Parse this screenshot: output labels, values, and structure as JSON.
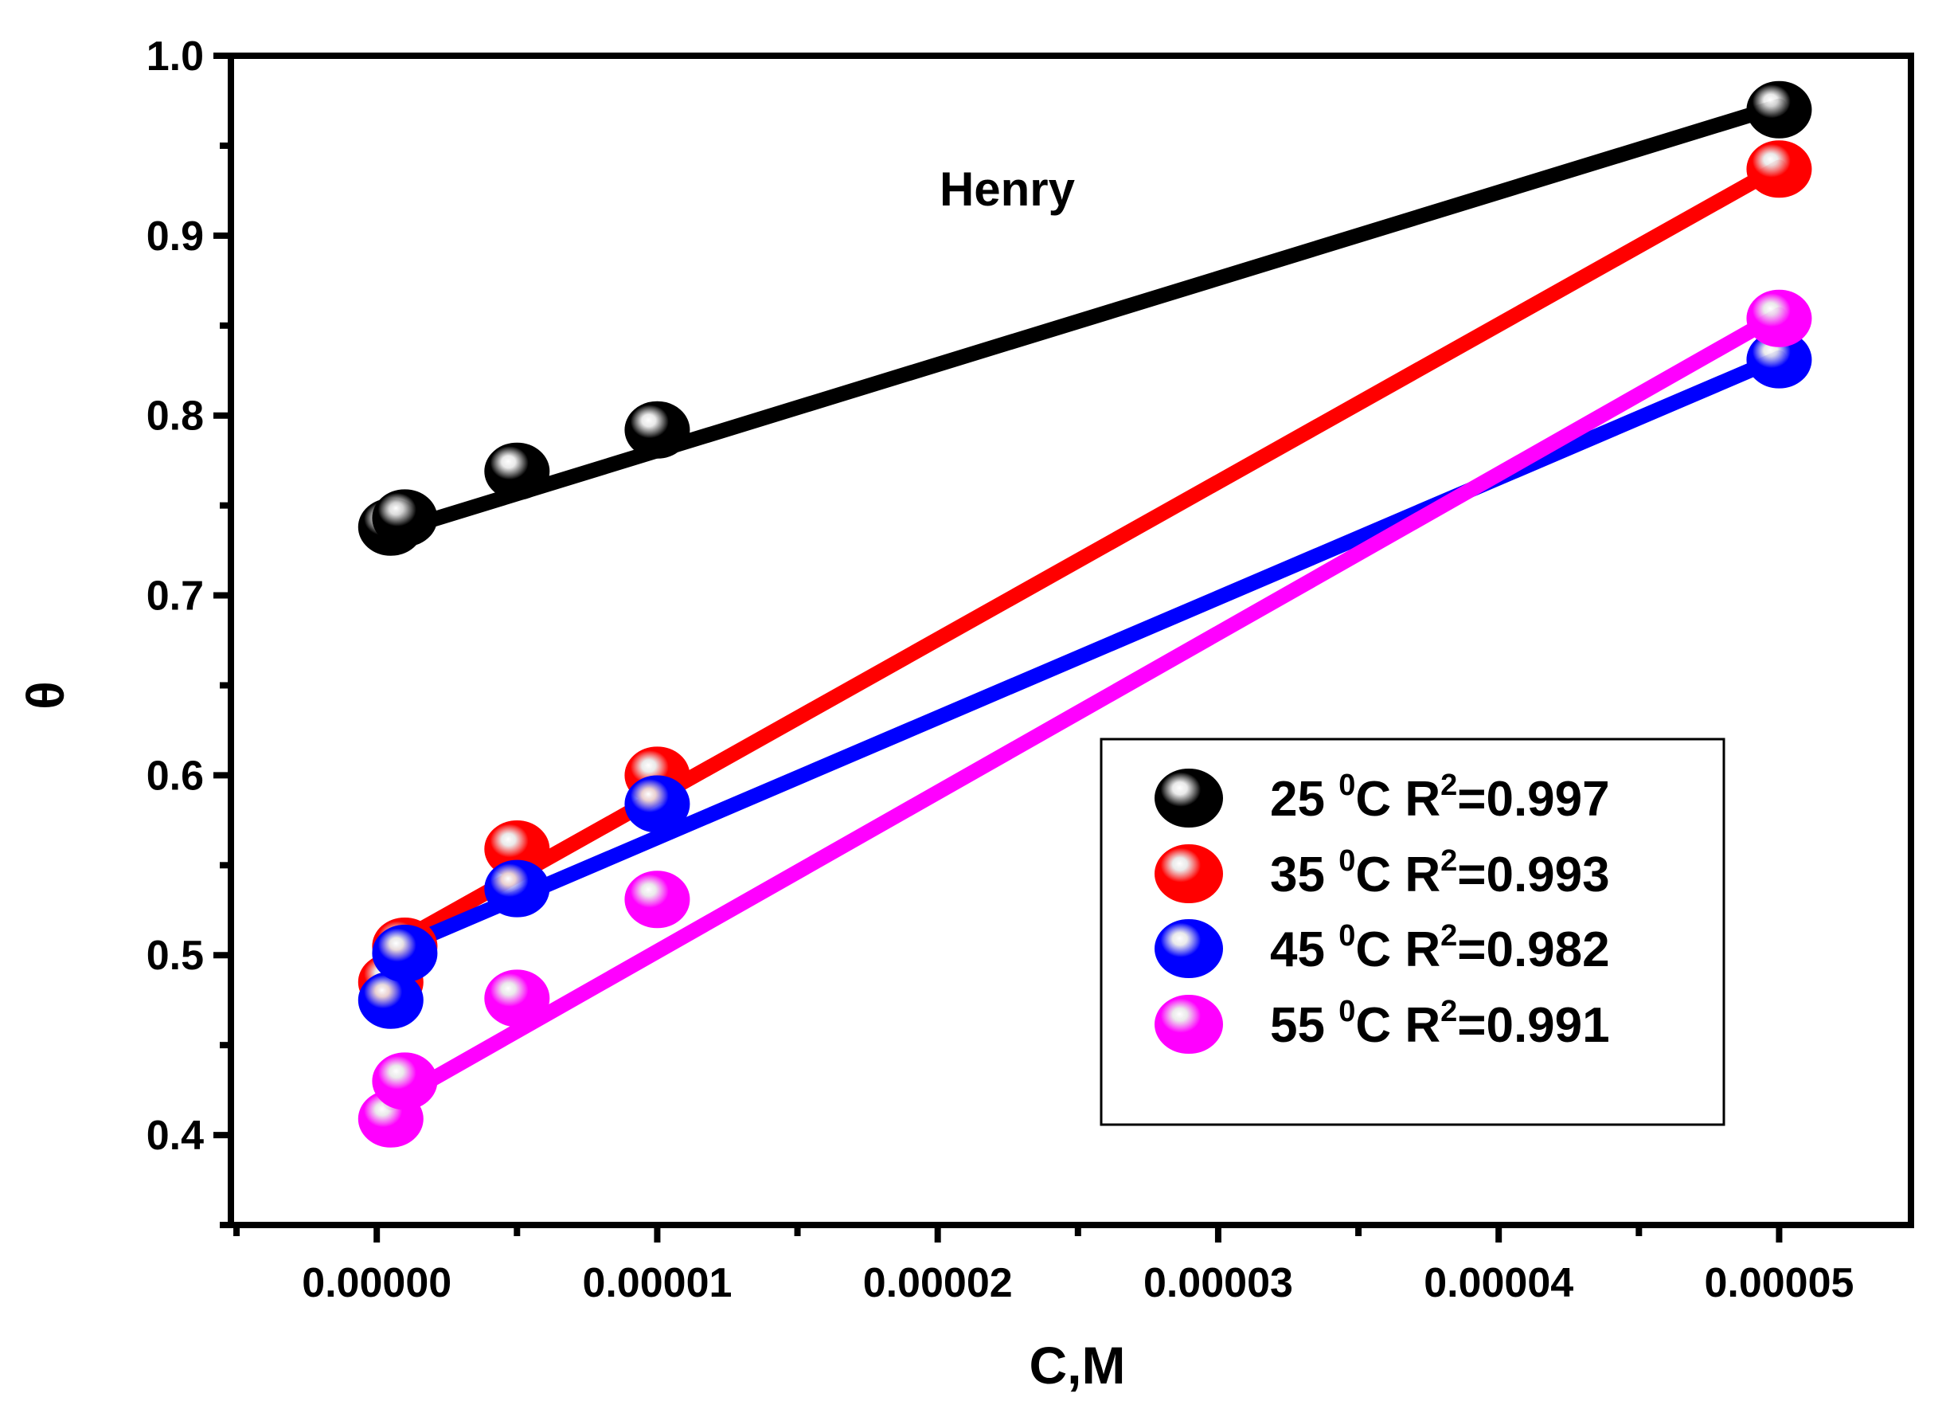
{
  "chart_data": {
    "type": "scatter",
    "title": "",
    "annotation": "Henry",
    "xlabel": "C,M",
    "ylabel": "θ",
    "xlim": [
      -5.2e-06,
      5.47e-05
    ],
    "ylim": [
      0.35,
      1.0
    ],
    "x_ticks": [
      0.0,
      1e-05,
      2e-05,
      3e-05,
      4e-05,
      5e-05
    ],
    "x_tick_labels": [
      "0.00000",
      "0.00001",
      "0.00002",
      "0.00003",
      "0.00004",
      "0.00005"
    ],
    "y_ticks": [
      0.4,
      0.5,
      0.6,
      0.7,
      0.8,
      0.9,
      1.0
    ],
    "y_tick_labels": [
      "0.4",
      "0.5",
      "0.6",
      "0.7",
      "0.8",
      "0.9",
      "1.0"
    ],
    "grid": false,
    "legend_position": "lower-right",
    "series": [
      {
        "name": "25 0C R2=0.997",
        "temp": "25",
        "deg": "0",
        "unit": "C R",
        "r2_sup": "2",
        "r2_value": "=0.997",
        "color": "#000000",
        "x": [
          5e-07,
          1e-06,
          5e-06,
          1e-05,
          5e-05
        ],
        "y": [
          0.738,
          0.743,
          0.769,
          0.792,
          0.97
        ],
        "fit_x": [
          5e-07,
          5e-05
        ],
        "fit_y": [
          0.735,
          0.972
        ]
      },
      {
        "name": "35 0C R2=0.993",
        "temp": "35",
        "deg": "0",
        "unit": "C R",
        "r2_sup": "2",
        "r2_value": "=0.993",
        "color": "#ff0000",
        "x": [
          5e-07,
          1e-06,
          5e-06,
          1e-05,
          5e-05
        ],
        "y": [
          0.485,
          0.505,
          0.559,
          0.6,
          0.937
        ],
        "fit_x": [
          5e-07,
          5e-05
        ],
        "fit_y": [
          0.505,
          0.938
        ]
      },
      {
        "name": "45 0C R2=0.982",
        "temp": "45",
        "deg": "0",
        "unit": "C R",
        "r2_sup": "2",
        "r2_value": "=0.982",
        "color": "#0000ff",
        "x": [
          5e-07,
          1e-06,
          5e-06,
          1e-05,
          5e-05
        ],
        "y": [
          0.475,
          0.501,
          0.537,
          0.584,
          0.831
        ],
        "fit_x": [
          5e-07,
          5e-05
        ],
        "fit_y": [
          0.502,
          0.832
        ]
      },
      {
        "name": "55 0C R2=0.991",
        "temp": "55",
        "deg": "0",
        "unit": "C R",
        "r2_sup": "2",
        "r2_value": "=0.991",
        "color": "#ff00ff",
        "x": [
          5e-07,
          1e-06,
          5e-06,
          1e-05,
          5e-05
        ],
        "y": [
          0.409,
          0.43,
          0.476,
          0.531,
          0.854
        ],
        "fit_x": [
          5e-07,
          5e-05
        ],
        "fit_y": [
          0.418,
          0.856
        ]
      }
    ]
  }
}
